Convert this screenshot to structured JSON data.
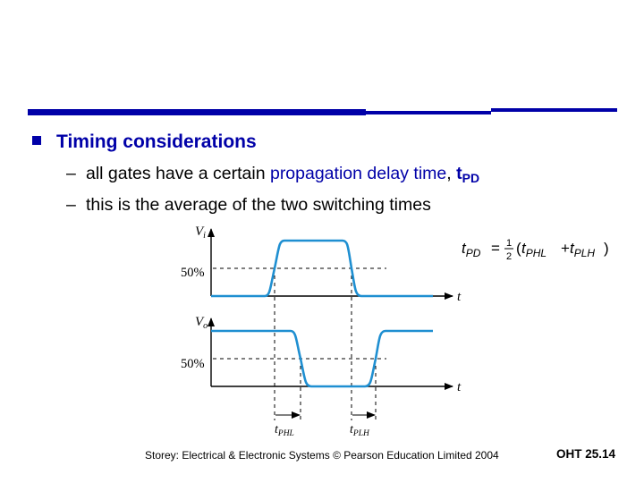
{
  "slide": {
    "bullet": "Timing considerations",
    "line1": {
      "dash": "–",
      "pre": "all gates have a certain ",
      "highlight": "propagation delay time",
      "comma": ", ",
      "var_main": "t",
      "var_sub": "PD"
    },
    "line2": {
      "dash": "–",
      "text": "this is the average of the two switching times"
    }
  },
  "diagram": {
    "input_axis_label_main": "V",
    "input_axis_label_sub": "i",
    "output_axis_label_main": "V",
    "output_axis_label_sub": "o",
    "input_threshold": "50%",
    "output_threshold": "50%",
    "time_label_input": "t",
    "time_label_output": "t",
    "delay_phl_main": "t",
    "delay_phl_sub": "PHL",
    "delay_plh_main": "t",
    "delay_plh_sub": "PLH",
    "waveform_color": "#1f8fd1"
  },
  "formula": {
    "lhs_main": "t",
    "lhs_sub": "PD",
    "equals": "=",
    "frac_num": "1",
    "frac_den": "2",
    "open_paren": "(",
    "term1_main": "t",
    "term1_sub": "PHL",
    "plus": "+",
    "term2_main": "t",
    "term2_sub": "PLH",
    "close_paren": ")"
  },
  "footer": {
    "left": "Storey: Electrical & Electronic Systems © Pearson Education Limited 2004",
    "right": "OHT 25.14"
  }
}
